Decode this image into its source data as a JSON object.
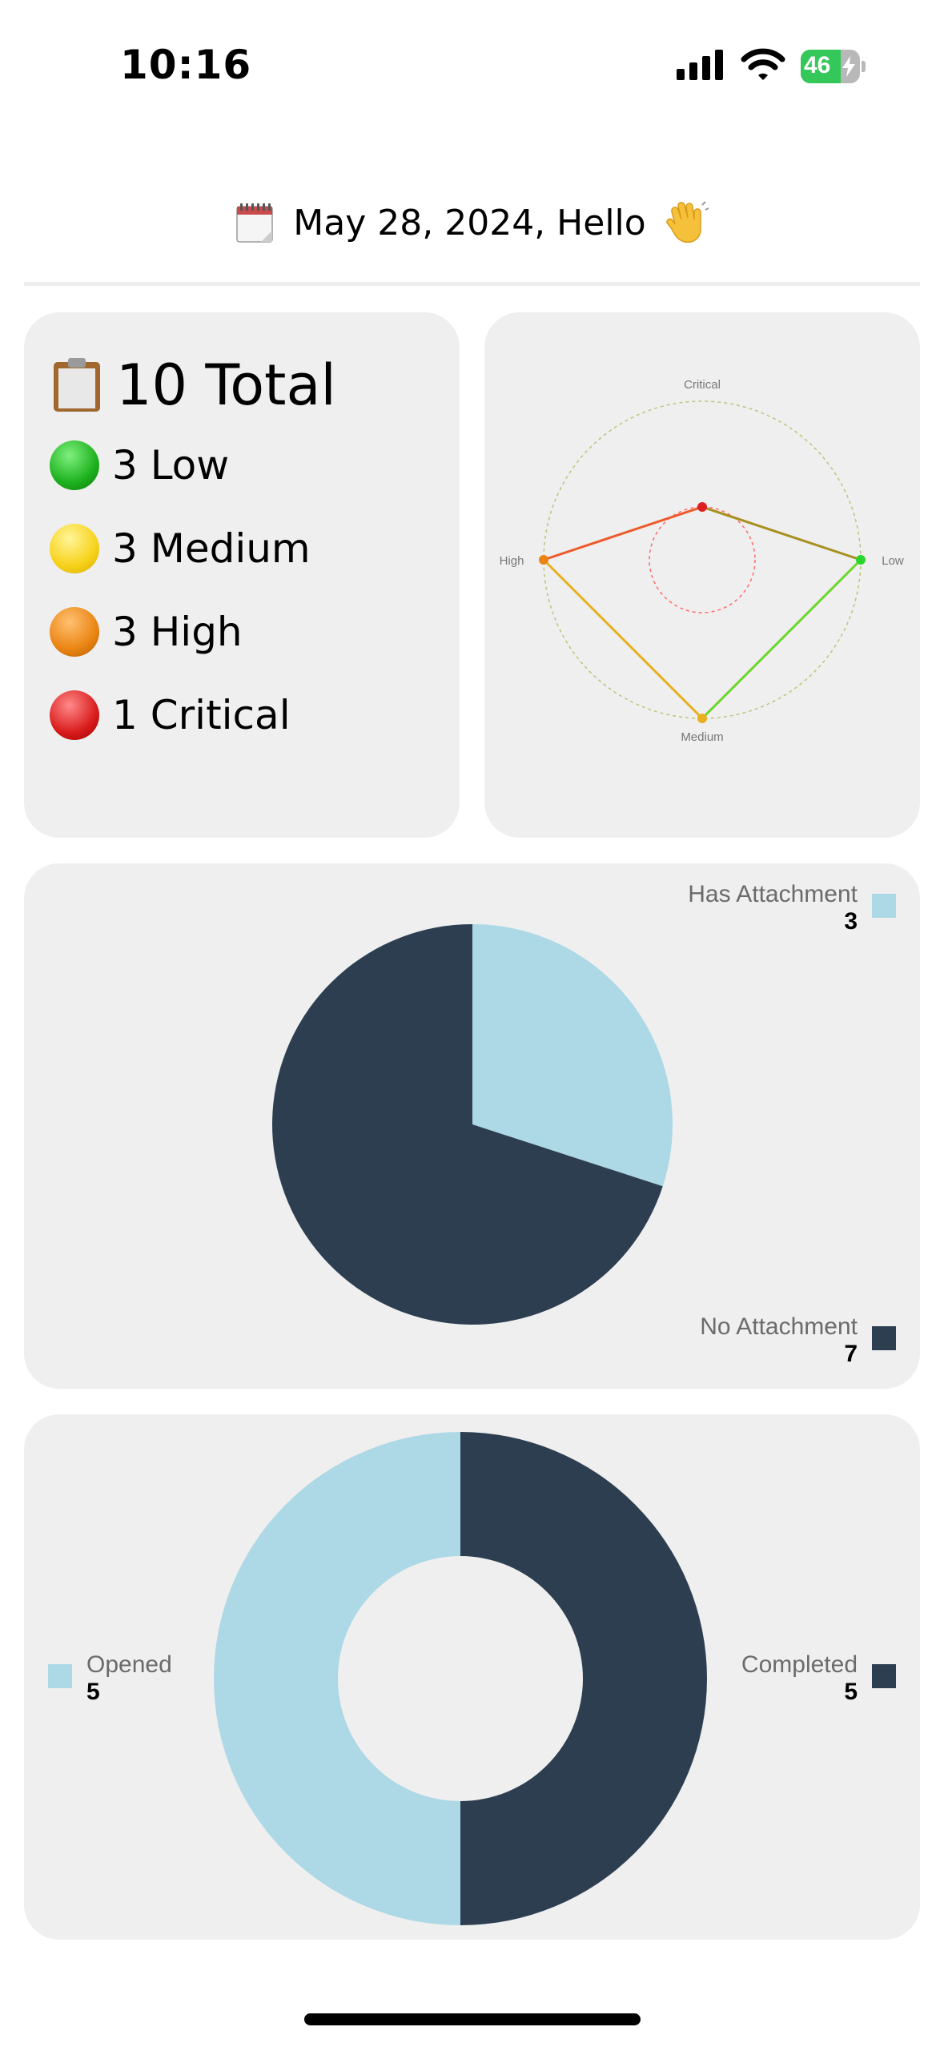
{
  "status_bar": {
    "time": "10:16",
    "battery_level": "46"
  },
  "header": {
    "greeting": "May 28, 2024, Hello",
    "calendar_icon": "calendar-icon",
    "wave_icon": "waving-hand-icon"
  },
  "summary": {
    "total_label": "10 Total",
    "severities": [
      {
        "label": "3 Low",
        "color": "#1db11d"
      },
      {
        "label": "3 Medium",
        "color": "#f7d21a"
      },
      {
        "label": "3 High",
        "color": "#ea8514"
      },
      {
        "label": "1 Critical",
        "color": "#d91c1c"
      }
    ]
  },
  "chart_data": [
    {
      "type": "radar",
      "axes": [
        "Critical",
        "Low",
        "Medium",
        "High"
      ],
      "values": [
        1,
        3,
        3,
        3
      ],
      "max": 3
    },
    {
      "type": "pie",
      "categories": [
        "Has Attachment",
        "No Attachment"
      ],
      "values": [
        3,
        7
      ],
      "colors": [
        "#add8e6",
        "#2c3e50"
      ],
      "legend_counts": [
        "3",
        "7"
      ]
    },
    {
      "type": "donut",
      "categories": [
        "Completed",
        "Opened"
      ],
      "values": [
        5,
        5
      ],
      "colors": [
        "#2c3e50",
        "#add8e6"
      ],
      "legend_counts": [
        "5",
        "5"
      ]
    }
  ]
}
